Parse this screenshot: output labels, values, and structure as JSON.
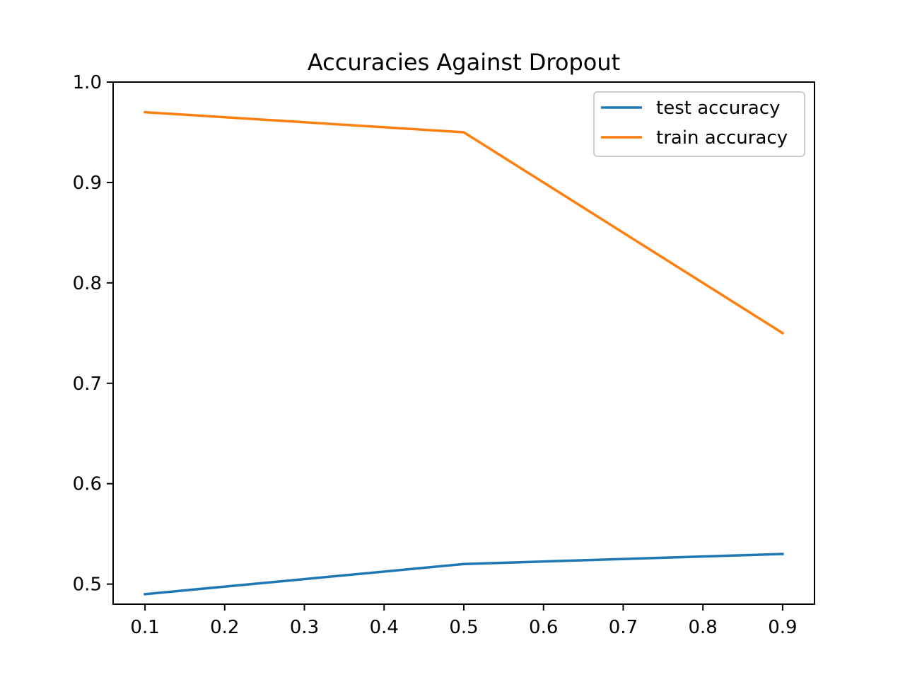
{
  "chart_data": {
    "type": "line",
    "title": "Accuracies Against Dropout",
    "xlabel": "",
    "ylabel": "",
    "xlim": [
      0.06,
      0.94
    ],
    "ylim": [
      0.48,
      1.0
    ],
    "x_ticks": [
      0.1,
      0.2,
      0.3,
      0.4,
      0.5,
      0.6,
      0.7,
      0.8,
      0.9
    ],
    "x_tick_labels": [
      "0.1",
      "0.2",
      "0.3",
      "0.4",
      "0.5",
      "0.6",
      "0.7",
      "0.8",
      "0.9"
    ],
    "y_ticks": [
      0.5,
      0.6,
      0.7,
      0.8,
      0.9,
      1.0
    ],
    "y_tick_labels": [
      "0.5",
      "0.6",
      "0.7",
      "0.8",
      "0.9",
      "1.0"
    ],
    "grid": false,
    "legend_position": "top-right",
    "series": [
      {
        "name": "test accuracy",
        "color": "#1f77b4",
        "x": [
          0.1,
          0.5,
          0.9
        ],
        "y": [
          0.49,
          0.52,
          0.53
        ]
      },
      {
        "name": "train accuracy",
        "color": "#ff7f0e",
        "x": [
          0.1,
          0.5,
          0.9
        ],
        "y": [
          0.97,
          0.95,
          0.75
        ]
      }
    ]
  }
}
